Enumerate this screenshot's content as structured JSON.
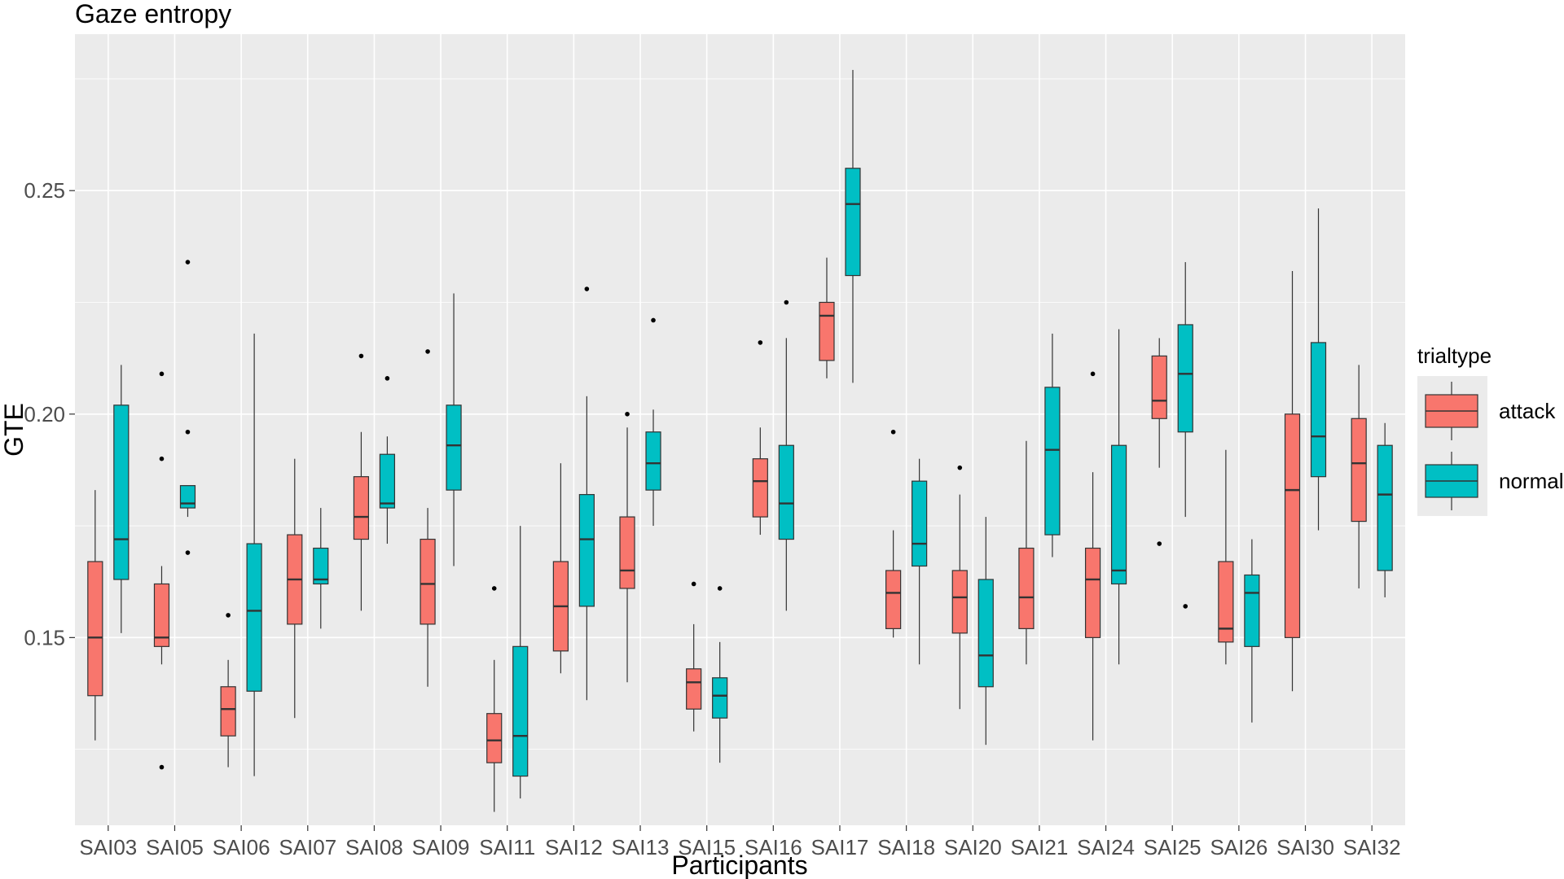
{
  "chart_data": {
    "type": "boxplot",
    "title": "Gaze entropy",
    "xlabel": "Participants",
    "ylabel": "GTE",
    "ylim": [
      0.108,
      0.285
    ],
    "yticks": [
      0.15,
      0.2,
      0.25
    ],
    "ytick_labels": [
      "0.15",
      "0.20",
      "0.25"
    ],
    "grid": true,
    "legend": {
      "title": "trialtype",
      "position": "right"
    },
    "categories": [
      "SAI03",
      "SAI05",
      "SAI06",
      "SAI07",
      "SAI08",
      "SAI09",
      "SAI11",
      "SAI12",
      "SAI13",
      "SAI15",
      "SAI16",
      "SAI17",
      "SAI18",
      "SAI20",
      "SAI21",
      "SAI24",
      "SAI25",
      "SAI26",
      "SAI30",
      "SAI32"
    ],
    "series": [
      {
        "name": "attack",
        "color": "#F8766D",
        "boxes": [
          {
            "min": 0.127,
            "q1": 0.137,
            "median": 0.15,
            "q3": 0.167,
            "max": 0.183,
            "outliers": []
          },
          {
            "min": 0.144,
            "q1": 0.148,
            "median": 0.15,
            "q3": 0.162,
            "max": 0.166,
            "outliers": [
              0.209,
              0.19,
              0.121
            ]
          },
          {
            "min": 0.121,
            "q1": 0.128,
            "median": 0.134,
            "q3": 0.139,
            "max": 0.145,
            "outliers": [
              0.155
            ]
          },
          {
            "min": 0.132,
            "q1": 0.153,
            "median": 0.163,
            "q3": 0.173,
            "max": 0.19,
            "outliers": []
          },
          {
            "min": 0.156,
            "q1": 0.172,
            "median": 0.177,
            "q3": 0.186,
            "max": 0.196,
            "outliers": [
              0.213
            ]
          },
          {
            "min": 0.139,
            "q1": 0.153,
            "median": 0.162,
            "q3": 0.172,
            "max": 0.179,
            "outliers": [
              0.214
            ]
          },
          {
            "min": 0.111,
            "q1": 0.122,
            "median": 0.127,
            "q3": 0.133,
            "max": 0.145,
            "outliers": [
              0.161
            ]
          },
          {
            "min": 0.142,
            "q1": 0.147,
            "median": 0.157,
            "q3": 0.167,
            "max": 0.189,
            "outliers": []
          },
          {
            "min": 0.14,
            "q1": 0.161,
            "median": 0.165,
            "q3": 0.177,
            "max": 0.197,
            "outliers": [
              0.2
            ]
          },
          {
            "min": 0.129,
            "q1": 0.134,
            "median": 0.14,
            "q3": 0.143,
            "max": 0.153,
            "outliers": [
              0.162
            ]
          },
          {
            "min": 0.173,
            "q1": 0.177,
            "median": 0.185,
            "q3": 0.19,
            "max": 0.197,
            "outliers": [
              0.216
            ]
          },
          {
            "min": 0.208,
            "q1": 0.212,
            "median": 0.222,
            "q3": 0.225,
            "max": 0.235,
            "outliers": []
          },
          {
            "min": 0.15,
            "q1": 0.152,
            "median": 0.16,
            "q3": 0.165,
            "max": 0.174,
            "outliers": [
              0.196
            ]
          },
          {
            "min": 0.134,
            "q1": 0.151,
            "median": 0.159,
            "q3": 0.165,
            "max": 0.182,
            "outliers": [
              0.188
            ]
          },
          {
            "min": 0.144,
            "q1": 0.152,
            "median": 0.159,
            "q3": 0.17,
            "max": 0.194,
            "outliers": []
          },
          {
            "min": 0.127,
            "q1": 0.15,
            "median": 0.163,
            "q3": 0.17,
            "max": 0.187,
            "outliers": [
              0.209
            ]
          },
          {
            "min": 0.188,
            "q1": 0.199,
            "median": 0.203,
            "q3": 0.213,
            "max": 0.217,
            "outliers": [
              0.171
            ]
          },
          {
            "min": 0.144,
            "q1": 0.149,
            "median": 0.152,
            "q3": 0.167,
            "max": 0.192,
            "outliers": []
          },
          {
            "min": 0.138,
            "q1": 0.15,
            "median": 0.183,
            "q3": 0.2,
            "max": 0.232,
            "outliers": []
          },
          {
            "min": 0.161,
            "q1": 0.176,
            "median": 0.189,
            "q3": 0.199,
            "max": 0.211,
            "outliers": []
          }
        ]
      },
      {
        "name": "normal",
        "color": "#00BFC4",
        "boxes": [
          {
            "min": 0.151,
            "q1": 0.163,
            "median": 0.172,
            "q3": 0.202,
            "max": 0.211,
            "outliers": []
          },
          {
            "min": 0.177,
            "q1": 0.179,
            "median": 0.18,
            "q3": 0.184,
            "max": 0.184,
            "outliers": [
              0.234,
              0.196,
              0.169
            ]
          },
          {
            "min": 0.119,
            "q1": 0.138,
            "median": 0.156,
            "q3": 0.171,
            "max": 0.218,
            "outliers": []
          },
          {
            "min": 0.152,
            "q1": 0.162,
            "median": 0.163,
            "q3": 0.17,
            "max": 0.179,
            "outliers": []
          },
          {
            "min": 0.171,
            "q1": 0.179,
            "median": 0.18,
            "q3": 0.191,
            "max": 0.195,
            "outliers": [
              0.208
            ]
          },
          {
            "min": 0.166,
            "q1": 0.183,
            "median": 0.193,
            "q3": 0.202,
            "max": 0.227,
            "outliers": []
          },
          {
            "min": 0.114,
            "q1": 0.119,
            "median": 0.128,
            "q3": 0.148,
            "max": 0.175,
            "outliers": []
          },
          {
            "min": 0.136,
            "q1": 0.157,
            "median": 0.172,
            "q3": 0.182,
            "max": 0.204,
            "outliers": [
              0.228
            ]
          },
          {
            "min": 0.175,
            "q1": 0.183,
            "median": 0.189,
            "q3": 0.196,
            "max": 0.201,
            "outliers": [
              0.221
            ]
          },
          {
            "min": 0.122,
            "q1": 0.132,
            "median": 0.137,
            "q3": 0.141,
            "max": 0.149,
            "outliers": [
              0.161
            ]
          },
          {
            "min": 0.156,
            "q1": 0.172,
            "median": 0.18,
            "q3": 0.193,
            "max": 0.217,
            "outliers": [
              0.225
            ]
          },
          {
            "min": 0.207,
            "q1": 0.231,
            "median": 0.247,
            "q3": 0.255,
            "max": 0.277,
            "outliers": []
          },
          {
            "min": 0.144,
            "q1": 0.166,
            "median": 0.171,
            "q3": 0.185,
            "max": 0.19,
            "outliers": []
          },
          {
            "min": 0.126,
            "q1": 0.139,
            "median": 0.146,
            "q3": 0.163,
            "max": 0.177,
            "outliers": []
          },
          {
            "min": 0.168,
            "q1": 0.173,
            "median": 0.192,
            "q3": 0.206,
            "max": 0.218,
            "outliers": []
          },
          {
            "min": 0.144,
            "q1": 0.162,
            "median": 0.165,
            "q3": 0.193,
            "max": 0.219,
            "outliers": []
          },
          {
            "min": 0.177,
            "q1": 0.196,
            "median": 0.209,
            "q3": 0.22,
            "max": 0.234,
            "outliers": [
              0.157
            ]
          },
          {
            "min": 0.131,
            "q1": 0.148,
            "median": 0.16,
            "q3": 0.164,
            "max": 0.172,
            "outliers": []
          },
          {
            "min": 0.174,
            "q1": 0.186,
            "median": 0.195,
            "q3": 0.216,
            "max": 0.246,
            "outliers": []
          },
          {
            "min": 0.159,
            "q1": 0.165,
            "median": 0.182,
            "q3": 0.193,
            "max": 0.198,
            "outliers": []
          }
        ]
      }
    ]
  }
}
